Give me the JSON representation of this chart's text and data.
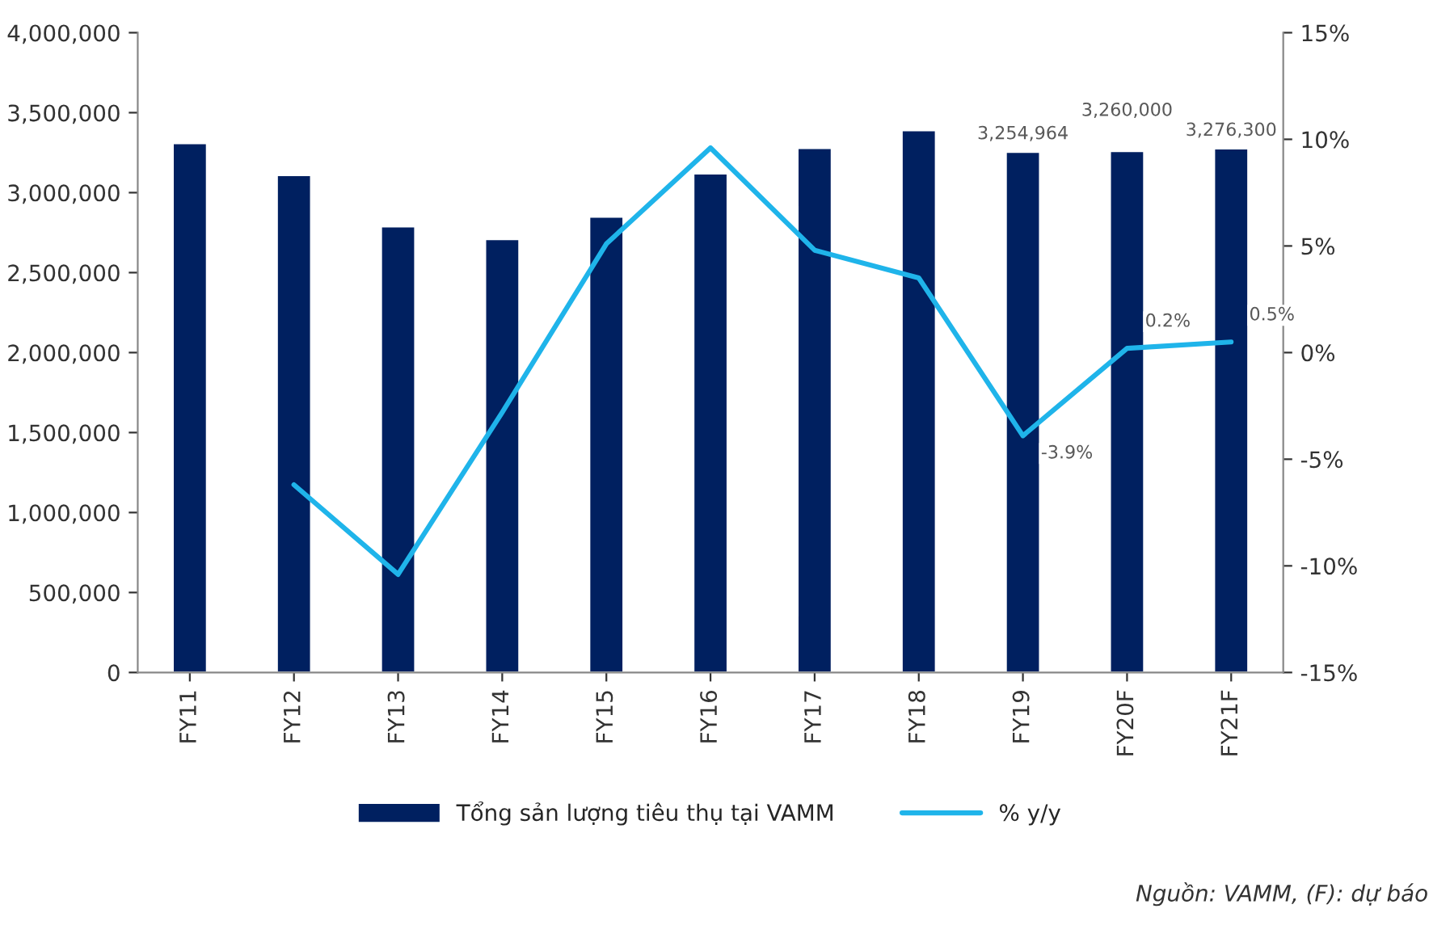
{
  "chart_data": {
    "type": "bar",
    "categories": [
      "FY11",
      "FY12",
      "FY13",
      "FY14",
      "FY15",
      "FY16",
      "FY17",
      "FY18",
      "FY19",
      "FY20F",
      "FY21F"
    ],
    "series": [
      {
        "name": "Tổng sản lượng tiêu thụ tại VAMM",
        "color": "#002060",
        "values": [
          3310000,
          3110000,
          2790000,
          2710000,
          2850000,
          3120000,
          3280000,
          3390000,
          3254964,
          3260000,
          3276300
        ],
        "value_labels": [
          null,
          null,
          null,
          null,
          null,
          null,
          null,
          null,
          "3,254,964",
          "3,260,000",
          "3,276,300"
        ]
      },
      {
        "name": "% y/y",
        "type": "line",
        "axis": "y2",
        "color": "#1fb4ea",
        "values": [
          null,
          -6.2,
          -10.4,
          -2.8,
          5.1,
          9.6,
          4.8,
          3.5,
          -3.9,
          0.2,
          0.5
        ],
        "value_labels": [
          null,
          null,
          null,
          null,
          null,
          null,
          null,
          null,
          "-3.9%",
          "0.2%",
          "0.5%"
        ]
      }
    ],
    "ylim": [
      0,
      4000000
    ],
    "yticks": [
      {
        "value": 0,
        "label": "0"
      },
      {
        "value": 500000,
        "label": "500,000"
      },
      {
        "value": 1000000,
        "label": "1,000,000"
      },
      {
        "value": 1500000,
        "label": "1,500,000"
      },
      {
        "value": 2000000,
        "label": "2,000,000"
      },
      {
        "value": 2500000,
        "label": "2,500,000"
      },
      {
        "value": 3000000,
        "label": "3,000,000"
      },
      {
        "value": 3500000,
        "label": "3,500,000"
      },
      {
        "value": 4000000,
        "label": "4,000,000"
      }
    ],
    "y2lim": [
      -15,
      15
    ],
    "y2ticks": [
      {
        "value": -15,
        "label": "-15%"
      },
      {
        "value": -10,
        "label": "-10%"
      },
      {
        "value": -5,
        "label": "-5%"
      },
      {
        "value": 0,
        "label": "0%"
      },
      {
        "value": 5,
        "label": "5%"
      },
      {
        "value": 10,
        "label": "10%"
      },
      {
        "value": 15,
        "label": "15%"
      }
    ],
    "legend": "bottom",
    "grid": false,
    "annotations": [
      "Nguồn: VAMM, (F): dự báo"
    ]
  }
}
